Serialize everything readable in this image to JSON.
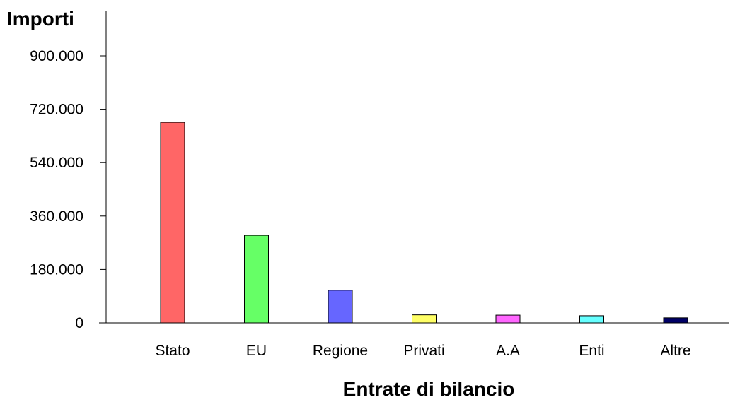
{
  "chart_data": {
    "type": "bar",
    "title": "",
    "xlabel": "Entrate di bilancio",
    "ylabel": "Importi",
    "categories": [
      "Stato",
      "EU",
      "Regione",
      "Privati",
      "A.A",
      "Enti",
      "Altre"
    ],
    "values": [
      676000,
      295000,
      110000,
      27000,
      26000,
      24000,
      17000
    ],
    "colors": [
      "#ff6666",
      "#66ff66",
      "#6666ff",
      "#ffff66",
      "#ff66ff",
      "#66ffff",
      "#000066"
    ],
    "ylim": [
      0,
      900000
    ],
    "yticks": [
      0,
      180000,
      360000,
      540000,
      720000,
      900000
    ],
    "ytick_labels": [
      "0",
      "180.000",
      "360.000",
      "540.000",
      "720.000",
      "900.000"
    ],
    "grid": false,
    "legend": "none"
  }
}
